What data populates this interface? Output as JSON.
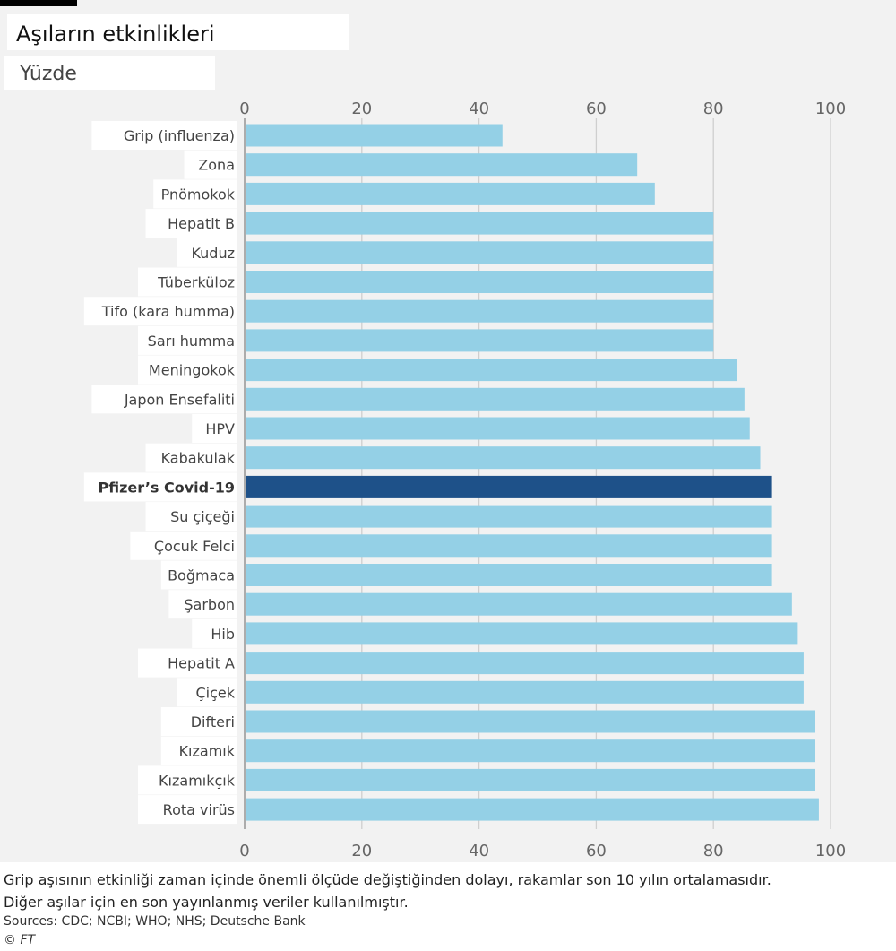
{
  "title": "Aşıların etkinlikleri",
  "subtitle": "Yüzde",
  "notes": [
    "Grip aşısının etkinliği zaman içinde önemli ölçüde değiştiğinden dolayı, rakamlar son 10 yılın ortalamasıdır.",
    "Diğer aşılar için en son yayınlanmış veriler kullanılmıştır."
  ],
  "sources": "Sources: CDC; NCBI; WHO; NHS; Deutsche Bank",
  "credit": "© FT",
  "colors": {
    "bar": "#94d0e6",
    "highlight_bar": "#1e5189",
    "grid": "#cfcfcf",
    "background": "#f2f2f2"
  },
  "chart_data": {
    "type": "bar",
    "orientation": "horizontal",
    "xlim": [
      0,
      100
    ],
    "xticks": [
      0,
      20,
      40,
      60,
      80,
      100
    ],
    "axis_position": "top and bottom",
    "grid": true,
    "highlight": "Pfizer’s Covid-19",
    "categories": [
      "Grip (influenza)",
      "Zona",
      "Pnömokok",
      "Hepatit B",
      "Kuduz",
      "Tüberküloz",
      "Tifo (kara humma)",
      "Sarı humma",
      "Meningokok",
      "Japon Ensefaliti",
      "HPV",
      "Kabakulak",
      "Pfizer’s Covid-19",
      "Su çiçeği",
      "Çocuk Felci",
      "Boğmaca",
      "Şarbon",
      "Hib",
      "Hepatit  A",
      "Çiçek",
      "Difteri",
      "Kızamık",
      "Kızamıkçık",
      "Rota virüs"
    ],
    "values": [
      44,
      67,
      70,
      80,
      80,
      80,
      80,
      80,
      84,
      85.3,
      86.2,
      88,
      90,
      90,
      90,
      90,
      93.4,
      94.4,
      95.4,
      95.4,
      97.4,
      97.4,
      97.4,
      98
    ]
  }
}
